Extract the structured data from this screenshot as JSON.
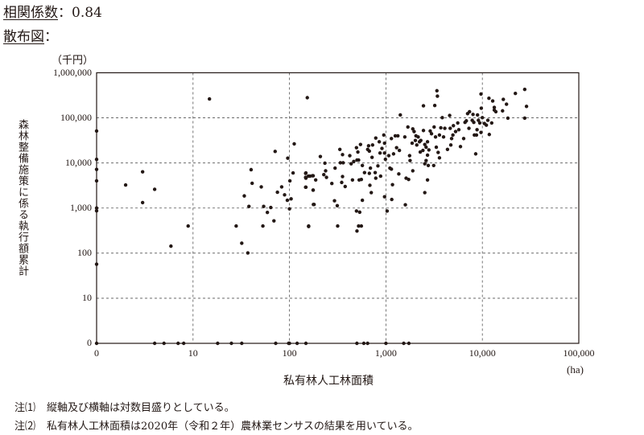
{
  "header": {
    "correlation_label": "相関係数",
    "correlation_sep": "：",
    "correlation_value": "0.84",
    "scatter_label": "散布図",
    "scatter_sep": "："
  },
  "notes": [
    {
      "marker": "注⑴",
      "text": "縦軸及び横軸は対数目盛りとしている。"
    },
    {
      "marker": "注⑵",
      "text": "私有林人工林面積は2020年（令和２年）農林業センサスの結果を用いている。"
    }
  ],
  "chart_data": {
    "type": "scatter",
    "xlabel": "私有林人工林面積",
    "xunit": "(ha)",
    "ylabel": "森林整備施策に係る執行額累計",
    "yunit": "（千円）",
    "xscale": "log",
    "yscale": "log",
    "xlim": [
      0,
      100000
    ],
    "ylim": [
      0,
      1000000
    ],
    "xticks": [
      0,
      10,
      100,
      1000,
      10000,
      100000
    ],
    "xtick_labels": [
      "0",
      "10",
      "100",
      "1,000",
      "10,000",
      "100,000"
    ],
    "yticks": [
      0,
      10,
      100,
      1000,
      10000,
      100000,
      1000000
    ],
    "ytick_labels": [
      "0",
      "10",
      "100",
      "1,000",
      "10,000",
      "100,000",
      "1,000,000"
    ],
    "grid": "dashed",
    "point_color": "#231815",
    "points": [
      [
        0,
        51000
      ],
      [
        0,
        12000
      ],
      [
        0,
        7200
      ],
      [
        0,
        4000
      ],
      [
        0,
        1000
      ],
      [
        0,
        870
      ],
      [
        0,
        57
      ],
      [
        0,
        0
      ],
      [
        2,
        3250
      ],
      [
        3,
        6350
      ],
      [
        3,
        1320
      ],
      [
        4,
        2600
      ],
      [
        5.9,
        143
      ],
      [
        8.9,
        400
      ],
      [
        14.8,
        263000
      ],
      [
        28,
        400
      ],
      [
        32,
        166
      ],
      [
        37,
        101
      ],
      [
        34,
        1860
      ],
      [
        40,
        7100
      ],
      [
        41,
        3540
      ],
      [
        38,
        1090
      ],
      [
        51,
        2950
      ],
      [
        53,
        400
      ],
      [
        54,
        1090
      ],
      [
        59,
        800
      ],
      [
        64,
        1030
      ],
      [
        69,
        520
      ],
      [
        71,
        18000
      ],
      [
        75,
        2240
      ],
      [
        83,
        2950
      ],
      [
        89,
        1960
      ],
      [
        95,
        1490
      ],
      [
        96,
        12800
      ],
      [
        100,
        960
      ],
      [
        101,
        4000
      ],
      [
        104,
        1600
      ],
      [
        109,
        6000
      ],
      [
        112,
        26500
      ],
      [
        148,
        6000
      ],
      [
        148,
        4600
      ],
      [
        148,
        2900
      ],
      [
        153,
        280000
      ],
      [
        158,
        400
      ],
      [
        163,
        5100
      ],
      [
        173,
        5200
      ],
      [
        176,
        2500
      ],
      [
        177,
        1200
      ],
      [
        4,
        0
      ],
      [
        5,
        0
      ],
      [
        7,
        0
      ],
      [
        8,
        0
      ],
      [
        18,
        0
      ],
      [
        25,
        0
      ],
      [
        32,
        0
      ],
      [
        72,
        0
      ],
      [
        98,
        0
      ],
      [
        100,
        0
      ],
      [
        120,
        0
      ],
      [
        148,
        0
      ],
      [
        500,
        0
      ],
      [
        590,
        0
      ],
      [
        646,
        0
      ],
      [
        1000,
        0
      ],
      [
        1530,
        0
      ],
      [
        1730,
        0
      ],
      [
        147,
        5900
      ],
      [
        147,
        4800
      ],
      [
        157,
        5100
      ],
      [
        176,
        5200
      ],
      [
        187,
        4200
      ],
      [
        147,
        2900
      ],
      [
        176,
        2500
      ],
      [
        180,
        1200
      ],
      [
        158,
        390
      ],
      [
        209,
        13900
      ],
      [
        233,
        9900
      ],
      [
        237,
        6700
      ],
      [
        227,
        5500
      ],
      [
        242,
        4800
      ],
      [
        275,
        3500
      ],
      [
        293,
        1450
      ],
      [
        313,
        1130
      ],
      [
        316,
        400
      ],
      [
        297,
        7700
      ],
      [
        333,
        20000
      ],
      [
        355,
        15300
      ],
      [
        337,
        10100
      ],
      [
        360,
        10100
      ],
      [
        355,
        5000
      ],
      [
        348,
        3700
      ],
      [
        378,
        3000
      ],
      [
        422,
        14500
      ],
      [
        436,
        9600
      ],
      [
        450,
        4200
      ],
      [
        464,
        10800
      ],
      [
        495,
        21800
      ],
      [
        512,
        17500
      ],
      [
        501,
        11600
      ],
      [
        521,
        11600
      ],
      [
        545,
        25700
      ],
      [
        528,
        4200
      ],
      [
        556,
        4300
      ],
      [
        570,
        8800
      ],
      [
        570,
        1490
      ],
      [
        495,
        860
      ],
      [
        535,
        810
      ],
      [
        521,
        400
      ],
      [
        556,
        400
      ],
      [
        501,
        310
      ],
      [
        600,
        6100
      ],
      [
        661,
        24000
      ],
      [
        673,
        5900
      ],
      [
        682,
        3200
      ],
      [
        705,
        2200
      ],
      [
        691,
        7700
      ],
      [
        647,
        20000
      ],
      [
        673,
        18300
      ],
      [
        718,
        13300
      ],
      [
        727,
        25000
      ],
      [
        785,
        35700
      ],
      [
        826,
        8600
      ],
      [
        774,
        6100
      ],
      [
        785,
        4600
      ],
      [
        853,
        29500
      ],
      [
        869,
        16600
      ],
      [
        881,
        5100
      ],
      [
        910,
        21000
      ],
      [
        951,
        41600
      ],
      [
        968,
        27500
      ],
      [
        968,
        16600
      ],
      [
        988,
        12100
      ],
      [
        968,
        1780
      ],
      [
        1030,
        860
      ],
      [
        1070,
        14500
      ],
      [
        1140,
        34800
      ],
      [
        1100,
        7700
      ],
      [
        1140,
        7300
      ],
      [
        1150,
        1550
      ],
      [
        1170,
        3300
      ],
      [
        1200,
        15900
      ],
      [
        1250,
        39900
      ],
      [
        1290,
        21800
      ],
      [
        1330,
        39900
      ],
      [
        1380,
        19000
      ],
      [
        1360,
        5700
      ],
      [
        1410,
        116000
      ],
      [
        1570,
        37800
      ],
      [
        1590,
        1180
      ],
      [
        1620,
        4600
      ],
      [
        1720,
        4300
      ],
      [
        1690,
        62700
      ],
      [
        1760,
        14500
      ],
      [
        1780,
        11300
      ],
      [
        1900,
        6700
      ],
      [
        1870,
        27500
      ],
      [
        1900,
        57000
      ],
      [
        1960,
        49700
      ],
      [
        2020,
        31600
      ],
      [
        2050,
        39900
      ],
      [
        2090,
        25000
      ],
      [
        2160,
        37800
      ],
      [
        2230,
        29500
      ],
      [
        2270,
        17500
      ],
      [
        2300,
        31600
      ],
      [
        2450,
        185000
      ],
      [
        2420,
        19000
      ],
      [
        2450,
        52500
      ],
      [
        2530,
        25700
      ],
      [
        2610,
        22400
      ],
      [
        2700,
        29500
      ],
      [
        2700,
        14900
      ],
      [
        2610,
        11300
      ],
      [
        2530,
        9600
      ],
      [
        2750,
        8800
      ],
      [
        2700,
        4200
      ],
      [
        2530,
        2200
      ],
      [
        2790,
        19500
      ],
      [
        2880,
        51000
      ],
      [
        2970,
        44500
      ],
      [
        3130,
        8800
      ],
      [
        3210,
        188000
      ],
      [
        3160,
        62700
      ],
      [
        3270,
        37800
      ],
      [
        3330,
        22400
      ],
      [
        3380,
        399000
      ],
      [
        3420,
        303000
      ],
      [
        3480,
        17100
      ],
      [
        3590,
        13000
      ],
      [
        3590,
        41600
      ],
      [
        3710,
        60100
      ],
      [
        3840,
        101000
      ],
      [
        3960,
        37800
      ],
      [
        4080,
        58600
      ],
      [
        4350,
        20000
      ],
      [
        4580,
        113000
      ],
      [
        4640,
        58600
      ],
      [
        4710,
        25000
      ],
      [
        4800,
        34800
      ],
      [
        4950,
        41600
      ],
      [
        5010,
        67100
      ],
      [
        5280,
        49700
      ],
      [
        5560,
        77100
      ],
      [
        5700,
        54700
      ],
      [
        5930,
        23100
      ],
      [
        6400,
        34800
      ],
      [
        6610,
        79300
      ],
      [
        7030,
        124000
      ],
      [
        7260,
        58600
      ],
      [
        7360,
        137000
      ],
      [
        7850,
        88400
      ],
      [
        8000,
        119000
      ],
      [
        8150,
        79300
      ],
      [
        8530,
        15900
      ],
      [
        8690,
        41600
      ],
      [
        8810,
        54700
      ],
      [
        8910,
        116000
      ],
      [
        9100,
        88400
      ],
      [
        9400,
        77100
      ],
      [
        9680,
        338000
      ],
      [
        9750,
        164000
      ],
      [
        10000,
        101000
      ],
      [
        10500,
        75000
      ],
      [
        11000,
        69000
      ],
      [
        11400,
        88400
      ],
      [
        11700,
        272000
      ],
      [
        11800,
        42800
      ],
      [
        12500,
        77100
      ],
      [
        12800,
        237000
      ],
      [
        13300,
        171000
      ],
      [
        13800,
        137000
      ],
      [
        13300,
        149000
      ],
      [
        16500,
        257000
      ],
      [
        16200,
        143000
      ],
      [
        17800,
        201000
      ],
      [
        18400,
        98600
      ],
      [
        22000,
        348000
      ],
      [
        27500,
        428000
      ],
      [
        28700,
        180000
      ],
      [
        27500,
        98600
      ],
      [
        9680,
        47600
      ],
      [
        8260,
        41600
      ],
      [
        6820,
        86000
      ]
    ]
  }
}
